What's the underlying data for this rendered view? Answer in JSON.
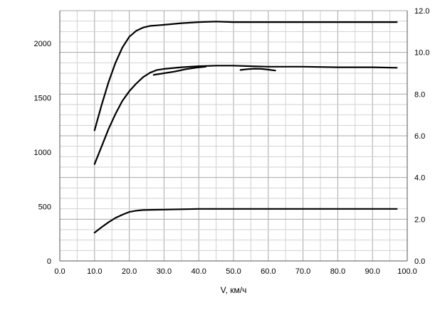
{
  "chart_data": {
    "type": "line",
    "xlabel": "V, км/ч",
    "xlim": [
      0,
      100
    ],
    "xticks": [
      "0.0",
      "10.0",
      "20.0",
      "30.0",
      "40.0",
      "50.0",
      "60.0",
      "70.0",
      "80.0",
      "90.0",
      "100.0"
    ],
    "ylim_left": [
      0,
      2300
    ],
    "yticks_left": [
      "0",
      "500",
      "1000",
      "1500",
      "2000"
    ],
    "ylim_right": [
      0,
      12
    ],
    "yticks_right": [
      "0.0",
      "2.0",
      "4.0",
      "6.0",
      "8.0",
      "10.0",
      "12.0"
    ],
    "grid": true,
    "legend": "none",
    "series": [
      {
        "axis": "left",
        "x": [
          10,
          12,
          14,
          16,
          18,
          20,
          22,
          24,
          26,
          28,
          30,
          35,
          40,
          45,
          50,
          60,
          70,
          80,
          90,
          97
        ],
        "y": [
          1200,
          1430,
          1640,
          1820,
          1960,
          2060,
          2115,
          2145,
          2160,
          2165,
          2170,
          2185,
          2195,
          2200,
          2195,
          2195,
          2195,
          2195,
          2195,
          2195
        ]
      },
      {
        "axis": "left",
        "x": [
          10,
          12,
          14,
          16,
          18,
          20,
          22,
          24,
          26,
          28,
          30,
          35,
          40,
          45,
          50,
          55,
          60,
          70,
          80,
          90,
          97
        ],
        "y": [
          890,
          1050,
          1210,
          1350,
          1470,
          1560,
          1630,
          1690,
          1730,
          1755,
          1765,
          1780,
          1790,
          1795,
          1795,
          1790,
          1785,
          1785,
          1780,
          1780,
          1775
        ]
      },
      {
        "axis": "left",
        "x": [
          10,
          12,
          14,
          16,
          18,
          20,
          22,
          24,
          26,
          30,
          35,
          40,
          50,
          60,
          70,
          80,
          90,
          97
        ],
        "y": [
          260,
          310,
          355,
          395,
          425,
          450,
          462,
          468,
          470,
          472,
          475,
          478,
          478,
          478,
          478,
          478,
          478,
          478
        ]
      },
      {
        "axis": "left",
        "x": [
          27,
          30,
          33,
          36,
          39,
          42
        ],
        "y": [
          1710,
          1725,
          1740,
          1760,
          1775,
          1785
        ]
      },
      {
        "axis": "left",
        "x": [
          52,
          54,
          56,
          58,
          60,
          62
        ],
        "y": [
          1755,
          1762,
          1767,
          1765,
          1758,
          1750
        ]
      }
    ]
  }
}
